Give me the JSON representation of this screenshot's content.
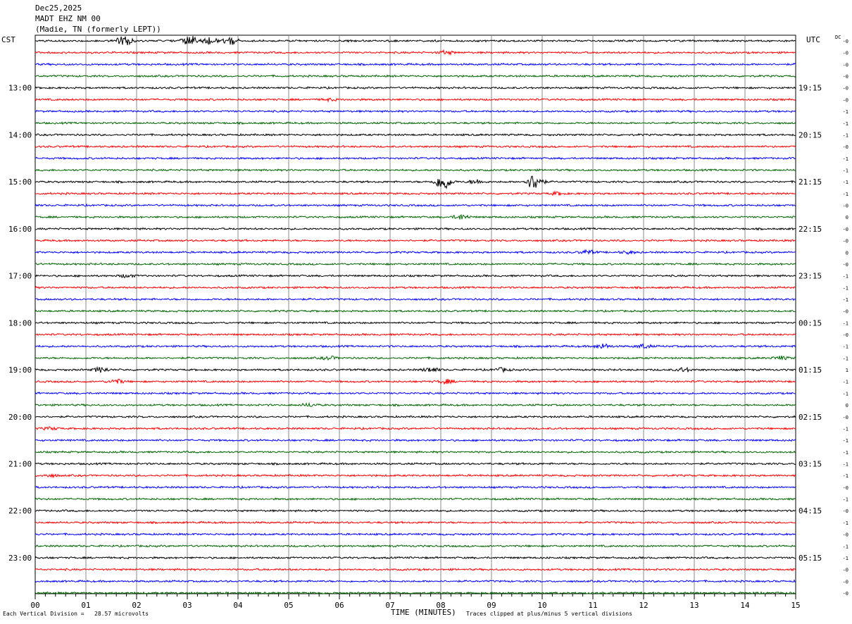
{
  "header": {
    "date": "Dec25,2025",
    "station": "MADT EHZ NM 00",
    "location": "(Madie, TN (formerly LEPT))"
  },
  "left_timezone": "CST",
  "right_timezone": "UTC",
  "dc_label": "DC",
  "chart_data": {
    "type": "line",
    "title": "",
    "xlabel": "TIME (MINUTES)",
    "xlim": [
      0,
      15
    ],
    "x_tick_labels": [
      "00",
      "01",
      "02",
      "03",
      "04",
      "05",
      "06",
      "07",
      "08",
      "09",
      "10",
      "11",
      "12",
      "13",
      "14",
      "15"
    ],
    "row_count": 48,
    "row_interval_minutes": 15,
    "trace_colors": [
      "#000000",
      "#ff0000",
      "#0000ff",
      "#006600"
    ],
    "left_hour_labels": [
      "13:00",
      "14:00",
      "15:00",
      "16:00",
      "17:00",
      "18:00",
      "19:00",
      "20:00",
      "21:00",
      "22:00",
      "23:00"
    ],
    "right_hour_labels": [
      "19:15",
      "20:15",
      "21:15",
      "22:15",
      "23:15",
      "00:15",
      "01:15",
      "02:15",
      "03:15",
      "04:15",
      "05:15"
    ],
    "dc_offsets": [
      "-0",
      "-0",
      "-0",
      "-0",
      "-0",
      "-0",
      "-1",
      "-1",
      "-1",
      "-0",
      "-1",
      "-1",
      "-1",
      "-1",
      "-0",
      "0",
      "-0",
      "-0",
      "0",
      "-0",
      "-1",
      "-1",
      "-1",
      "-0",
      "-1",
      "-0",
      "-1",
      "-1",
      "1",
      "-1",
      "-1",
      "0",
      "-0",
      "-1",
      "-1",
      "-1",
      "-1",
      "-1",
      "-0",
      "-1",
      "-0",
      "-1",
      "-0",
      "-1",
      "-1",
      "-0",
      "-0",
      "-0"
    ],
    "events": [
      {
        "row": 0,
        "minute": 1.75,
        "amp": 3.5
      },
      {
        "row": 0,
        "minute": 3.05,
        "amp": 3
      },
      {
        "row": 0,
        "minute": 3.45,
        "amp": 2
      },
      {
        "row": 0,
        "minute": 3.85,
        "amp": 2.2
      },
      {
        "row": 1,
        "minute": 8.1,
        "amp": 1
      },
      {
        "row": 5,
        "minute": 5.8,
        "amp": 0.6
      },
      {
        "row": 12,
        "minute": 8.05,
        "amp": 5
      },
      {
        "row": 12,
        "minute": 9.85,
        "amp": 5
      },
      {
        "row": 12,
        "minute": 8.7,
        "amp": 1.2
      },
      {
        "row": 13,
        "minute": 10.3,
        "amp": 0.8
      },
      {
        "row": 15,
        "minute": 8.4,
        "amp": 1.5
      },
      {
        "row": 18,
        "minute": 10.9,
        "amp": 1.2
      },
      {
        "row": 18,
        "minute": 11.7,
        "amp": 0.8
      },
      {
        "row": 20,
        "minute": 1.8,
        "amp": 0.9
      },
      {
        "row": 26,
        "minute": 11.2,
        "amp": 1.5
      },
      {
        "row": 26,
        "minute": 12,
        "amp": 1.2
      },
      {
        "row": 27,
        "minute": 5.8,
        "amp": 0.9
      },
      {
        "row": 27,
        "minute": 14.7,
        "amp": 1
      },
      {
        "row": 28,
        "minute": 1.3,
        "amp": 1.5
      },
      {
        "row": 28,
        "minute": 7.8,
        "amp": 1.4
      },
      {
        "row": 28,
        "minute": 9.2,
        "amp": 1
      },
      {
        "row": 28,
        "minute": 12.8,
        "amp": 1.2
      },
      {
        "row": 29,
        "minute": 1.6,
        "amp": 1.3
      },
      {
        "row": 29,
        "minute": 8.1,
        "amp": 1.2
      },
      {
        "row": 31,
        "minute": 5.4,
        "amp": 0.9
      },
      {
        "row": 33,
        "minute": 0.3,
        "amp": 0.7
      },
      {
        "row": 37,
        "minute": 0.3,
        "amp": 0.7
      }
    ]
  },
  "footer": {
    "scale_note": "Each Vertical Division =   28.57 microvolts",
    "clip_note": "Traces clipped at plus/minus 5 vertical divisions"
  }
}
